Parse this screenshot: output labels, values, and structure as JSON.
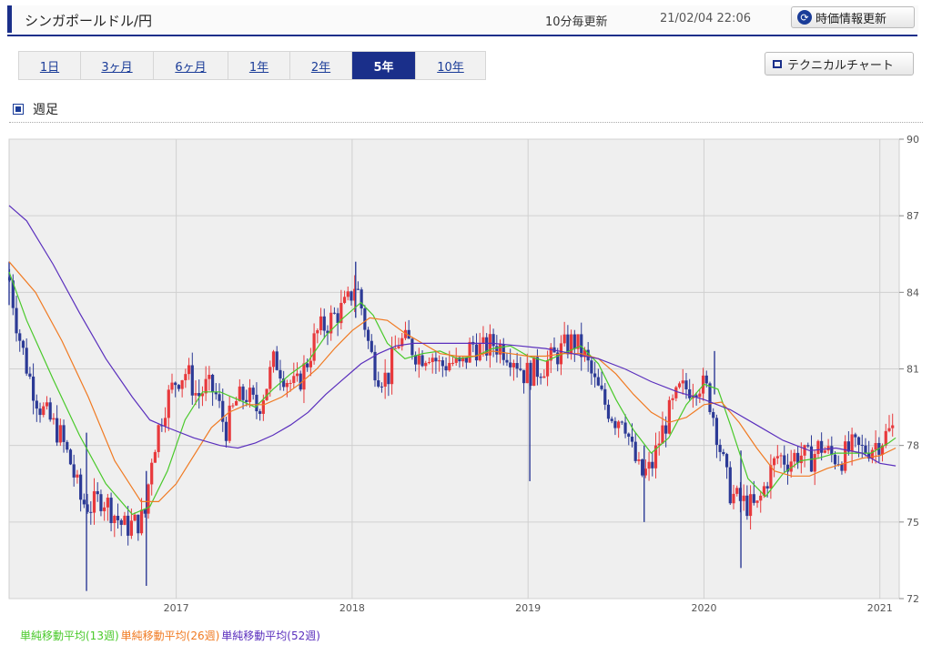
{
  "header": {
    "title": "シンガポールドル/円",
    "update_interval": "10分毎更新",
    "timestamp": "21/02/04 22:06",
    "refresh_label": "時価情報更新"
  },
  "tabs": [
    {
      "label": "1日",
      "active": false
    },
    {
      "label": "3ヶ月",
      "active": false
    },
    {
      "label": "6ヶ月",
      "active": false
    },
    {
      "label": "1年",
      "active": false
    },
    {
      "label": "2年",
      "active": false
    },
    {
      "label": "5年",
      "active": true
    },
    {
      "label": "10年",
      "active": false
    }
  ],
  "technical_button": "テクニカルチャート",
  "section_title": "週足",
  "chart_data": {
    "type": "candlestick",
    "ylim": [
      72,
      90
    ],
    "y_ticks": [
      "90",
      "87",
      "84",
      "81",
      "78",
      "75",
      "72"
    ],
    "x_ticks": [
      "2017",
      "2018",
      "2019",
      "2020",
      "2021"
    ],
    "xlim": [
      2016.05,
      2021.11
    ],
    "grid": true,
    "colors": {
      "up": "#e8393c",
      "down": "#2c3a96",
      "ma13": "#49c92a",
      "ma26": "#f07a22",
      "ma52": "#5a2fbd",
      "plot_bg": "#efefef"
    },
    "close_path": [
      [
        2016.05,
        84.6
      ],
      [
        2016.1,
        82.5
      ],
      [
        2016.16,
        80.8
      ],
      [
        2016.22,
        79.6
      ],
      [
        2016.28,
        79.0
      ],
      [
        2016.34,
        78.4
      ],
      [
        2016.4,
        77.3
      ],
      [
        2016.46,
        75.8
      ],
      [
        2016.52,
        75.6
      ],
      [
        2016.58,
        76.0
      ],
      [
        2016.64,
        75.4
      ],
      [
        2016.7,
        74.8
      ],
      [
        2016.76,
        74.9
      ],
      [
        2016.82,
        75.2
      ],
      [
        2016.86,
        77.6
      ],
      [
        2016.93,
        79.5
      ],
      [
        2017.0,
        80.6
      ],
      [
        2017.06,
        80.9
      ],
      [
        2017.12,
        79.9
      ],
      [
        2017.17,
        80.3
      ],
      [
        2017.22,
        80.1
      ],
      [
        2017.28,
        78.6
      ],
      [
        2017.34,
        79.7
      ],
      [
        2017.4,
        80.0
      ],
      [
        2017.46,
        79.4
      ],
      [
        2017.52,
        80.5
      ],
      [
        2017.56,
        81.4
      ],
      [
        2017.62,
        80.7
      ],
      [
        2017.68,
        80.2
      ],
      [
        2017.74,
        81.2
      ],
      [
        2017.8,
        82.4
      ],
      [
        2017.86,
        82.8
      ],
      [
        2017.92,
        83.2
      ],
      [
        2017.97,
        83.5
      ],
      [
        2018.02,
        84.4
      ],
      [
        2018.06,
        83.2
      ],
      [
        2018.1,
        81.7
      ],
      [
        2018.14,
        80.9
      ],
      [
        2018.2,
        80.6
      ],
      [
        2018.26,
        82.1
      ],
      [
        2018.32,
        82.0
      ],
      [
        2018.38,
        81.5
      ],
      [
        2018.44,
        81.7
      ],
      [
        2018.5,
        81.1
      ],
      [
        2018.56,
        81.3
      ],
      [
        2018.62,
        81.0
      ],
      [
        2018.68,
        82.0
      ],
      [
        2018.74,
        81.7
      ],
      [
        2018.8,
        82.0
      ],
      [
        2018.86,
        81.8
      ],
      [
        2018.92,
        81.5
      ],
      [
        2018.98,
        80.8
      ],
      [
        2019.03,
        80.9
      ],
      [
        2019.08,
        81.1
      ],
      [
        2019.14,
        81.4
      ],
      [
        2019.2,
        81.8
      ],
      [
        2019.26,
        82.1
      ],
      [
        2019.32,
        81.5
      ],
      [
        2019.38,
        80.4
      ],
      [
        2019.44,
        79.6
      ],
      [
        2019.5,
        79.0
      ],
      [
        2019.54,
        79.3
      ],
      [
        2019.59,
        77.8
      ],
      [
        2019.64,
        76.8
      ],
      [
        2019.7,
        77.1
      ],
      [
        2019.75,
        78.3
      ],
      [
        2019.8,
        79.2
      ],
      [
        2019.86,
        80.1
      ],
      [
        2019.92,
        80.3
      ],
      [
        2019.97,
        80.5
      ],
      [
        2020.02,
        80.1
      ],
      [
        2020.06,
        79.0
      ],
      [
        2020.1,
        77.6
      ],
      [
        2020.14,
        76.3
      ],
      [
        2020.18,
        75.9
      ],
      [
        2020.24,
        75.7
      ],
      [
        2020.3,
        75.5
      ],
      [
        2020.36,
        76.7
      ],
      [
        2020.42,
        77.6
      ],
      [
        2020.48,
        77.4
      ],
      [
        2020.54,
        77.7
      ],
      [
        2020.6,
        77.4
      ],
      [
        2020.66,
        78.0
      ],
      [
        2020.72,
        77.6
      ],
      [
        2020.78,
        77.5
      ],
      [
        2020.84,
        77.9
      ],
      [
        2020.9,
        77.8
      ],
      [
        2020.96,
        78.0
      ],
      [
        2021.02,
        78.3
      ],
      [
        2021.08,
        78.7
      ]
    ],
    "spikes": [
      {
        "x": 2016.49,
        "low": 72.3,
        "high": 78.5
      },
      {
        "x": 2016.83,
        "low": 72.5,
        "high": 77.0
      },
      {
        "x": 2019.01,
        "low": 76.6,
        "high": 80.8
      },
      {
        "x": 2019.66,
        "low": 75.0,
        "high": 78.0
      },
      {
        "x": 2020.21,
        "low": 73.2,
        "high": 77.8
      },
      {
        "x": 2018.02,
        "low": 83.0,
        "high": 85.2
      },
      {
        "x": 2020.06,
        "low": 80.0,
        "high": 81.7
      },
      {
        "x": 2016.05,
        "low": 83.5,
        "high": 85.2
      }
    ],
    "series": [
      {
        "name": "単純移動平均(13週)",
        "color_key": "ma13",
        "points": [
          [
            2016.05,
            84.8
          ],
          [
            2016.15,
            82.9
          ],
          [
            2016.3,
            80.6
          ],
          [
            2016.45,
            78.4
          ],
          [
            2016.6,
            76.5
          ],
          [
            2016.75,
            75.3
          ],
          [
            2016.85,
            75.6
          ],
          [
            2016.95,
            77.0
          ],
          [
            2017.05,
            79.0
          ],
          [
            2017.15,
            80.1
          ],
          [
            2017.25,
            80.1
          ],
          [
            2017.35,
            79.8
          ],
          [
            2017.45,
            79.5
          ],
          [
            2017.55,
            80.2
          ],
          [
            2017.65,
            80.8
          ],
          [
            2017.75,
            81.3
          ],
          [
            2017.85,
            82.3
          ],
          [
            2017.95,
            83.0
          ],
          [
            2018.05,
            83.6
          ],
          [
            2018.12,
            83.1
          ],
          [
            2018.2,
            82.0
          ],
          [
            2018.3,
            81.4
          ],
          [
            2018.4,
            81.6
          ],
          [
            2018.5,
            81.7
          ],
          [
            2018.6,
            81.4
          ],
          [
            2018.7,
            81.5
          ],
          [
            2018.8,
            81.8
          ],
          [
            2018.9,
            81.9
          ],
          [
            2019.0,
            81.5
          ],
          [
            2019.1,
            81.3
          ],
          [
            2019.2,
            81.6
          ],
          [
            2019.3,
            81.9
          ],
          [
            2019.4,
            81.2
          ],
          [
            2019.5,
            79.8
          ],
          [
            2019.6,
            78.6
          ],
          [
            2019.7,
            77.7
          ],
          [
            2019.8,
            78.3
          ],
          [
            2019.9,
            79.6
          ],
          [
            2020.0,
            80.4
          ],
          [
            2020.08,
            80.2
          ],
          [
            2020.15,
            78.8
          ],
          [
            2020.25,
            76.7
          ],
          [
            2020.35,
            76.0
          ],
          [
            2020.45,
            76.9
          ],
          [
            2020.55,
            77.4
          ],
          [
            2020.65,
            77.5
          ],
          [
            2020.75,
            77.7
          ],
          [
            2020.85,
            77.7
          ],
          [
            2020.95,
            77.7
          ],
          [
            2021.05,
            78.1
          ],
          [
            2021.09,
            78.3
          ]
        ]
      },
      {
        "name": "単純移動平均(26週)",
        "color_key": "ma26",
        "points": [
          [
            2016.05,
            85.2
          ],
          [
            2016.2,
            84.0
          ],
          [
            2016.35,
            82.1
          ],
          [
            2016.5,
            79.9
          ],
          [
            2016.65,
            77.4
          ],
          [
            2016.8,
            75.8
          ],
          [
            2016.9,
            75.8
          ],
          [
            2017.0,
            76.5
          ],
          [
            2017.1,
            77.6
          ],
          [
            2017.2,
            78.7
          ],
          [
            2017.3,
            79.3
          ],
          [
            2017.4,
            79.6
          ],
          [
            2017.5,
            79.6
          ],
          [
            2017.6,
            79.9
          ],
          [
            2017.7,
            80.4
          ],
          [
            2017.8,
            81.0
          ],
          [
            2017.9,
            81.8
          ],
          [
            2018.0,
            82.5
          ],
          [
            2018.1,
            83.0
          ],
          [
            2018.2,
            82.9
          ],
          [
            2018.3,
            82.4
          ],
          [
            2018.4,
            82.0
          ],
          [
            2018.5,
            81.6
          ],
          [
            2018.6,
            81.5
          ],
          [
            2018.7,
            81.5
          ],
          [
            2018.8,
            81.7
          ],
          [
            2018.9,
            81.6
          ],
          [
            2019.0,
            81.5
          ],
          [
            2019.1,
            81.5
          ],
          [
            2019.2,
            81.6
          ],
          [
            2019.3,
            81.6
          ],
          [
            2019.4,
            81.4
          ],
          [
            2019.5,
            80.8
          ],
          [
            2019.6,
            80.0
          ],
          [
            2019.7,
            79.3
          ],
          [
            2019.8,
            78.9
          ],
          [
            2019.9,
            79.1
          ],
          [
            2020.0,
            79.6
          ],
          [
            2020.1,
            79.7
          ],
          [
            2020.2,
            78.9
          ],
          [
            2020.3,
            77.9
          ],
          [
            2020.4,
            77.0
          ],
          [
            2020.5,
            76.8
          ],
          [
            2020.6,
            76.8
          ],
          [
            2020.7,
            77.1
          ],
          [
            2020.8,
            77.3
          ],
          [
            2020.9,
            77.5
          ],
          [
            2021.0,
            77.6
          ],
          [
            2021.09,
            77.9
          ]
        ]
      },
      {
        "name": "単純移動平均(52週)",
        "color_key": "ma52",
        "points": [
          [
            2016.05,
            87.4
          ],
          [
            2016.15,
            86.8
          ],
          [
            2016.3,
            85.1
          ],
          [
            2016.45,
            83.2
          ],
          [
            2016.6,
            81.4
          ],
          [
            2016.75,
            79.9
          ],
          [
            2016.85,
            79.0
          ],
          [
            2016.95,
            78.7
          ],
          [
            2017.1,
            78.3
          ],
          [
            2017.25,
            78.0
          ],
          [
            2017.35,
            77.9
          ],
          [
            2017.45,
            78.1
          ],
          [
            2017.55,
            78.4
          ],
          [
            2017.65,
            78.8
          ],
          [
            2017.75,
            79.3
          ],
          [
            2017.85,
            80.0
          ],
          [
            2017.95,
            80.6
          ],
          [
            2018.05,
            81.2
          ],
          [
            2018.15,
            81.6
          ],
          [
            2018.25,
            81.9
          ],
          [
            2018.35,
            82.0
          ],
          [
            2018.5,
            82.0
          ],
          [
            2018.65,
            82.0
          ],
          [
            2018.8,
            82.0
          ],
          [
            2018.95,
            81.9
          ],
          [
            2019.1,
            81.8
          ],
          [
            2019.25,
            81.6
          ],
          [
            2019.4,
            81.4
          ],
          [
            2019.55,
            81.0
          ],
          [
            2019.7,
            80.5
          ],
          [
            2019.85,
            80.1
          ],
          [
            2020.0,
            79.8
          ],
          [
            2020.15,
            79.4
          ],
          [
            2020.3,
            78.8
          ],
          [
            2020.45,
            78.2
          ],
          [
            2020.6,
            77.8
          ],
          [
            2020.75,
            77.9
          ],
          [
            2020.9,
            77.7
          ],
          [
            2021.0,
            77.3
          ],
          [
            2021.09,
            77.2
          ]
        ]
      }
    ]
  }
}
